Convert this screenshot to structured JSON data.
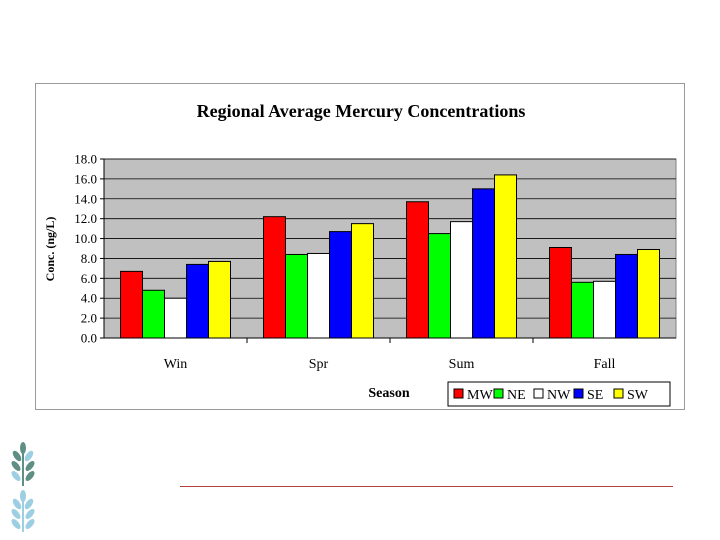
{
  "chart_data": {
    "type": "bar",
    "title": "Regional Average Mercury Concentrations",
    "xlabel": "Season",
    "ylabel": "Conc. (ng/L)",
    "ylim": [
      0,
      18
    ],
    "yticks": [
      "0.0",
      "2.0",
      "4.0",
      "6.0",
      "8.0",
      "10.0",
      "12.0",
      "14.0",
      "16.0",
      "18.0"
    ],
    "grid": true,
    "legend_position": "bottom-right",
    "categories": [
      "Win",
      "Spr",
      "Sum",
      "Fall"
    ],
    "series": [
      {
        "name": "MW",
        "color": "#ff0000",
        "values": [
          6.7,
          12.2,
          13.7,
          9.1
        ]
      },
      {
        "name": "NE",
        "color": "#00ff00",
        "values": [
          4.8,
          8.4,
          10.5,
          5.6
        ]
      },
      {
        "name": "NW",
        "color": "#ffffff",
        "values": [
          4.0,
          8.5,
          11.7,
          5.7
        ]
      },
      {
        "name": "SE",
        "color": "#0000ff",
        "values": [
          7.4,
          10.7,
          15.0,
          8.4
        ]
      },
      {
        "name": "SW",
        "color": "#ffff00",
        "values": [
          7.7,
          11.5,
          16.4,
          8.9
        ]
      }
    ]
  },
  "colors": {
    "plot_background": "#c0c0c0",
    "footer_rule": "#b04040",
    "leaf_dark": "#5f8f84",
    "leaf_light": "#9ccfe2"
  }
}
